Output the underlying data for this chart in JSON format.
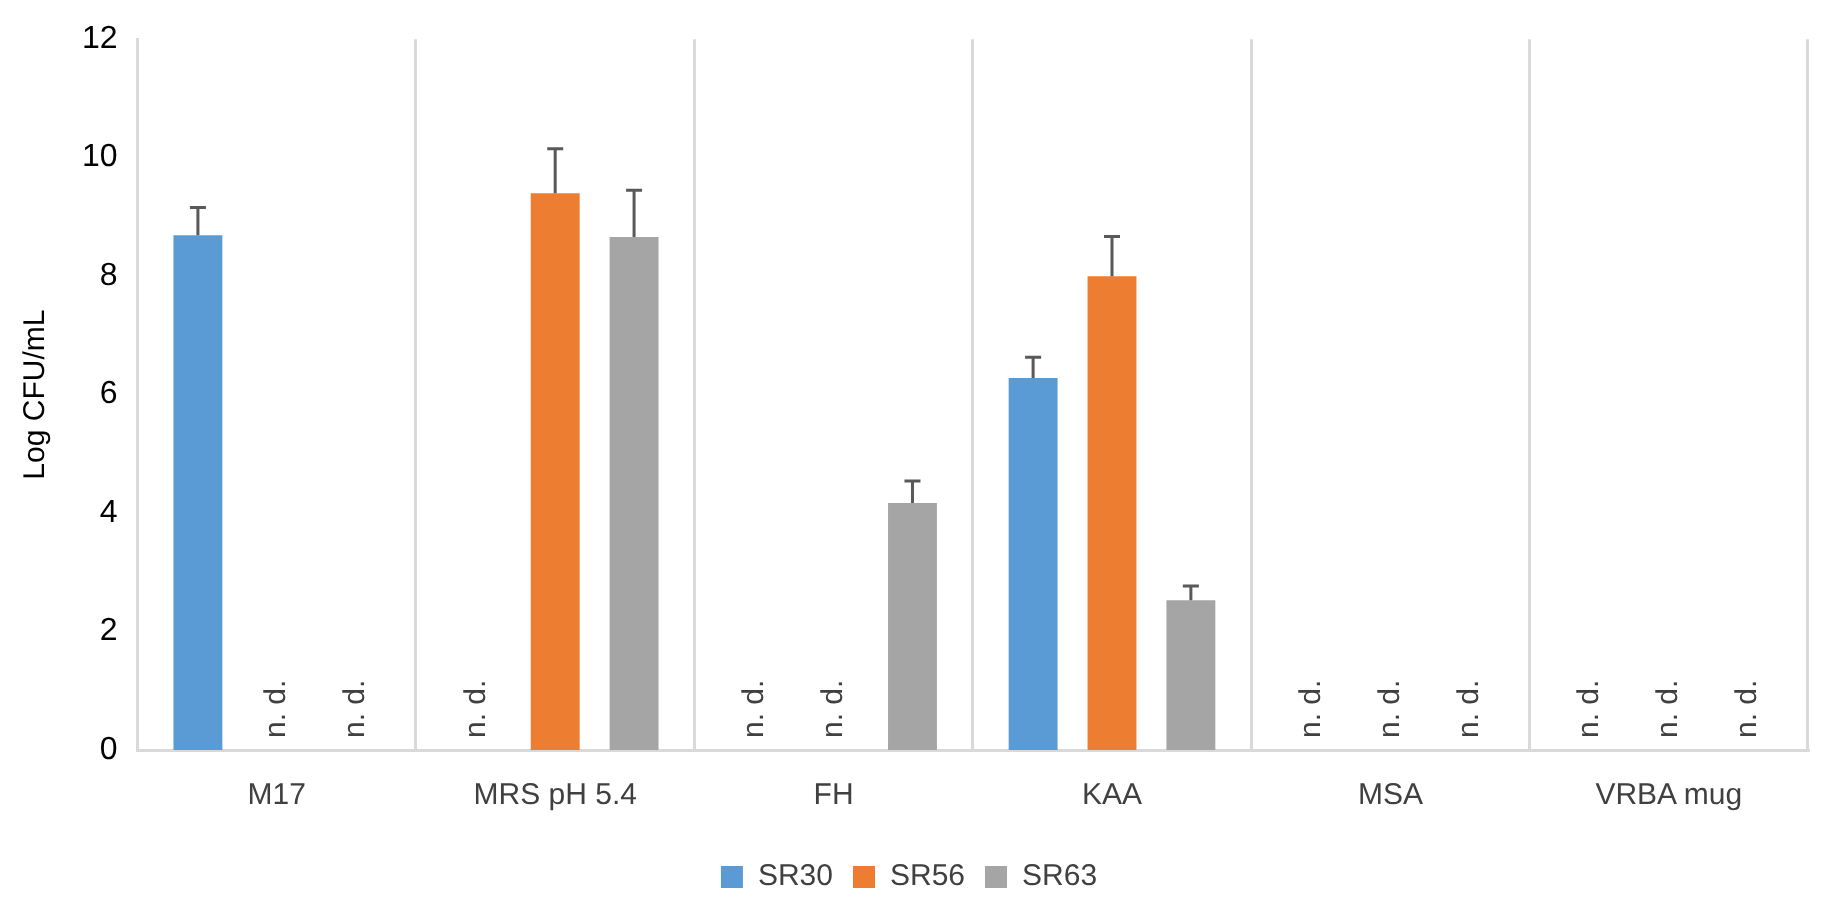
{
  "chart_data": {
    "type": "bar",
    "ylabel": "Log CFU/mL",
    "categories": [
      "M17",
      "MRS pH 5.4",
      "FH",
      "KAA",
      "MSA",
      "VRBA mug"
    ],
    "series": [
      {
        "name": "SR30",
        "color": "#5b9bd5",
        "values": [
          8.69,
          null,
          null,
          6.28,
          null,
          null
        ],
        "errors": [
          [
            8.69,
            9.16
          ],
          null,
          null,
          [
            6.28,
            6.63
          ],
          null,
          null
        ],
        "value_labels": [
          null,
          "n. d.",
          "n. d.",
          null,
          "n. d.",
          "n. d."
        ]
      },
      {
        "name": "SR56",
        "color": "#ed7d31",
        "values": [
          null,
          9.4,
          null,
          8.0,
          null,
          null
        ],
        "errors": [
          null,
          [
            9.4,
            10.15
          ],
          null,
          [
            8.0,
            8.67
          ],
          null,
          null
        ],
        "value_labels": [
          "n. d.",
          null,
          "n. d.",
          null,
          "n. d.",
          "n. d."
        ]
      },
      {
        "name": "SR63",
        "color": "#a5a5a5",
        "values": [
          null,
          8.66,
          4.17,
          2.53,
          null,
          null
        ],
        "errors": [
          null,
          [
            8.66,
            9.45
          ],
          [
            4.17,
            4.54
          ],
          [
            2.53,
            2.77
          ],
          null,
          null
        ],
        "value_labels": [
          "n. d.",
          null,
          null,
          null,
          "n. d.",
          "n. d."
        ]
      }
    ],
    "ylim": [
      0,
      12
    ],
    "yticks": [
      0,
      2,
      4,
      6,
      8,
      10,
      12
    ],
    "grid": "x",
    "legend": "bottom"
  }
}
